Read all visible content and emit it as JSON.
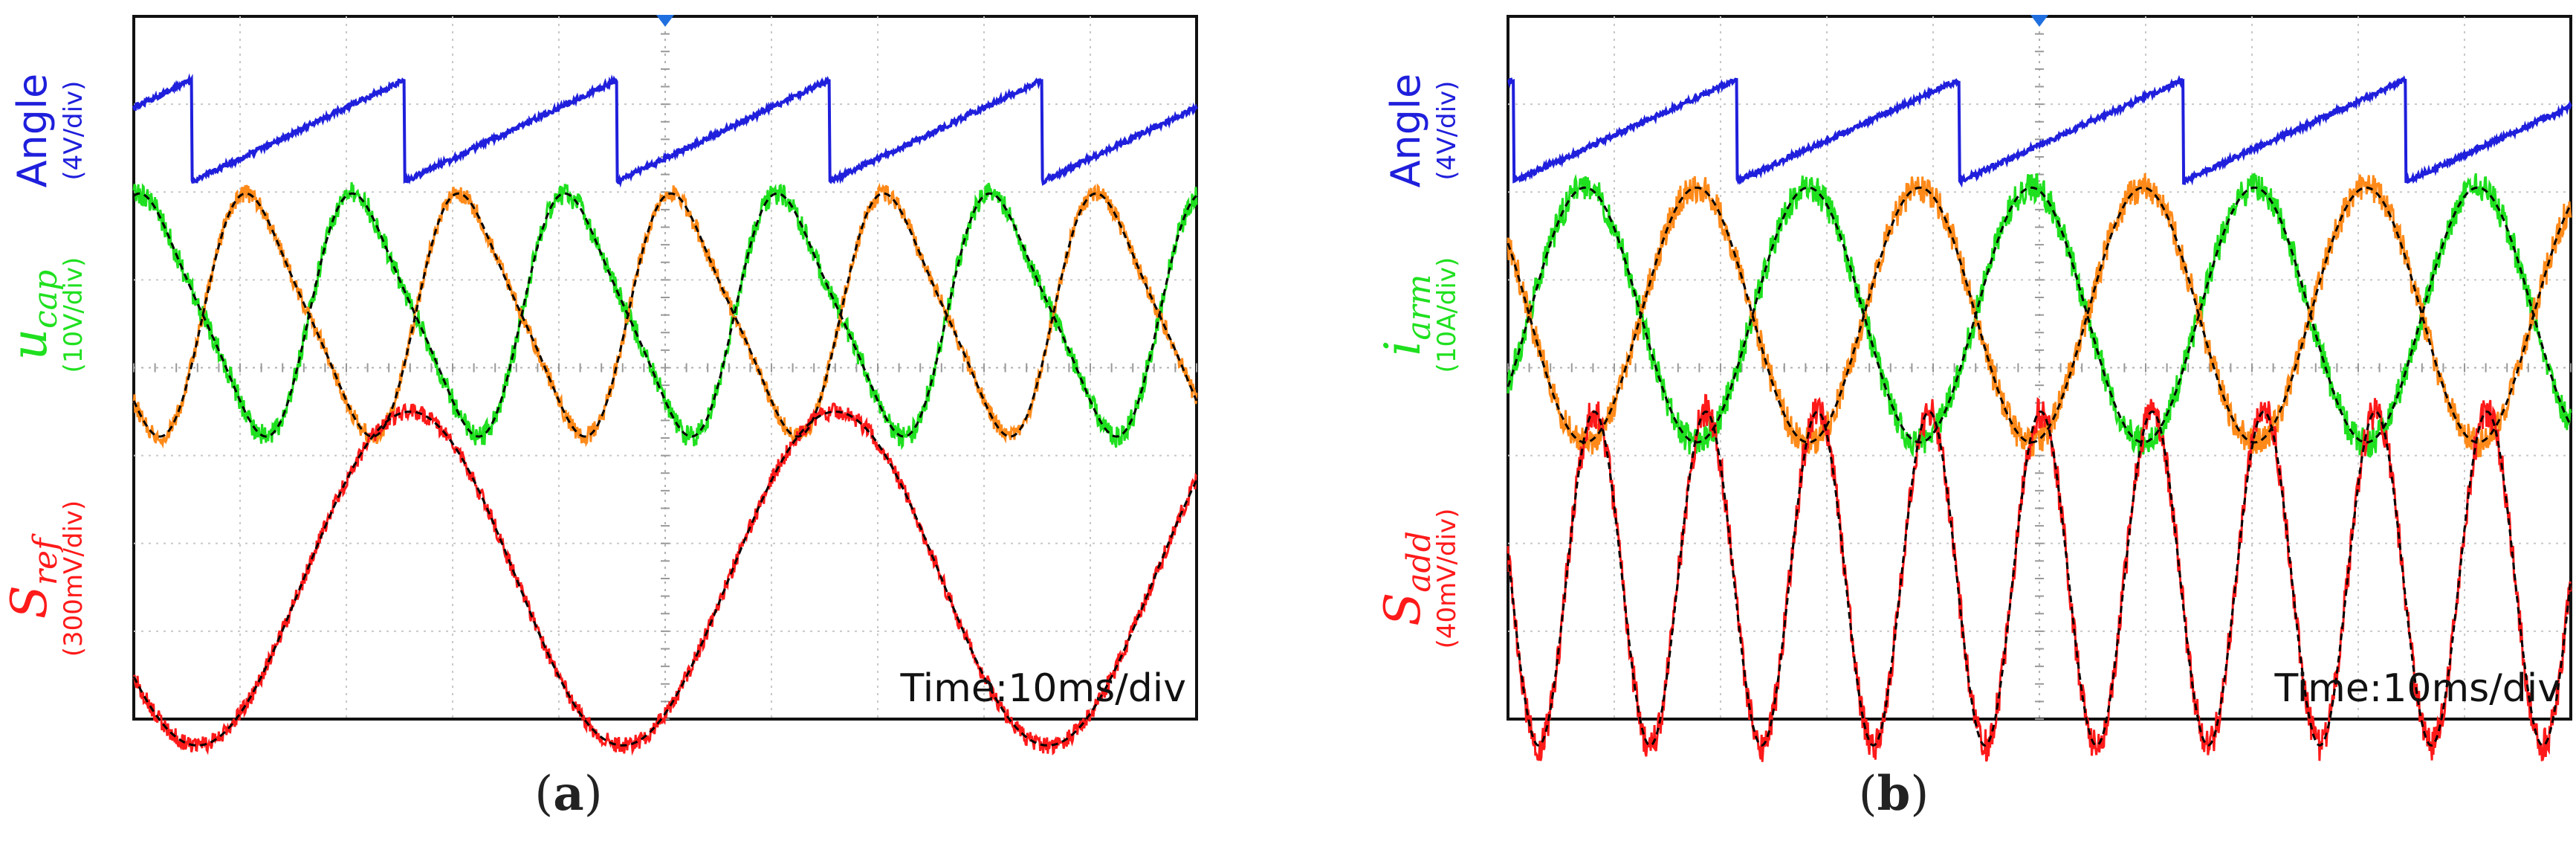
{
  "chart_data": [
    {
      "type": "line",
      "panel": "a",
      "caption_label": "a",
      "time_scale": "Time:10ms/div",
      "x_divisions": 10,
      "y_divisions": 8,
      "colors": {
        "angle": "#1f1fdc",
        "trace1": "#1fe01f",
        "trace2": "#ff8a1a",
        "trace3": "#ff1a1a",
        "fit": "#000000"
      },
      "channels": [
        {
          "key": "angle",
          "name": "Angle",
          "scale": "(4V/div)",
          "shape": "sawtooth",
          "period_div": 2.0,
          "phase_div": -1.45,
          "noise": 0.05
        },
        {
          "key": "ucap",
          "name_main": "u",
          "name_sub": "cap",
          "scale": "(10V/div)",
          "series": [
            {
              "name": "ucap-green",
              "shape": "sine2h",
              "period_div": 2.0,
              "phase_div": -0.35,
              "harmonic": 0.18,
              "noise": 0.09
            },
            {
              "name": "ucap-orange",
              "shape": "sine2h",
              "period_div": 2.0,
              "phase_div": 0.65,
              "harmonic": 0.18,
              "noise": 0.07
            }
          ]
        },
        {
          "key": "sref",
          "name_main": "S",
          "name_sub": "ref",
          "scale": "(300mV/div)",
          "series": [
            {
              "name": "sref-red",
              "shape": "sine",
              "period_div": 4.0,
              "phase_div": 1.6,
              "noise": 0.05
            }
          ]
        }
      ]
    },
    {
      "type": "line",
      "panel": "b",
      "caption_label": "b",
      "time_scale": "Time:10ms/div",
      "x_divisions": 10,
      "y_divisions": 8,
      "colors": {
        "angle": "#1f1fdc",
        "trace1": "#1fe01f",
        "trace2": "#ff8a1a",
        "trace3": "#ff1a1a",
        "fit": "#000000"
      },
      "channels": [
        {
          "key": "angle",
          "name": "Angle",
          "scale": "(4V/div)",
          "shape": "sawtooth",
          "period_div": 2.1,
          "phase_div": -2.05,
          "noise": 0.05
        },
        {
          "key": "iarm",
          "name_main": "i",
          "name_sub": "arm",
          "scale": "(10A/div)",
          "series": [
            {
              "name": "iarm-green",
              "shape": "sine",
              "period_div": 2.1,
              "phase_div": 0.2,
              "noise": 0.12
            },
            {
              "name": "iarm-orange",
              "shape": "sine",
              "period_div": 2.1,
              "phase_div": 1.25,
              "noise": 0.12
            }
          ]
        },
        {
          "key": "sadd",
          "name_main": "S",
          "name_sub": "add",
          "scale": "(40mV/div)",
          "series": [
            {
              "name": "sadd-red",
              "shape": "sine",
              "period_div": 1.05,
              "phase_div": 0.55,
              "noise": 0.1
            }
          ]
        }
      ]
    }
  ]
}
